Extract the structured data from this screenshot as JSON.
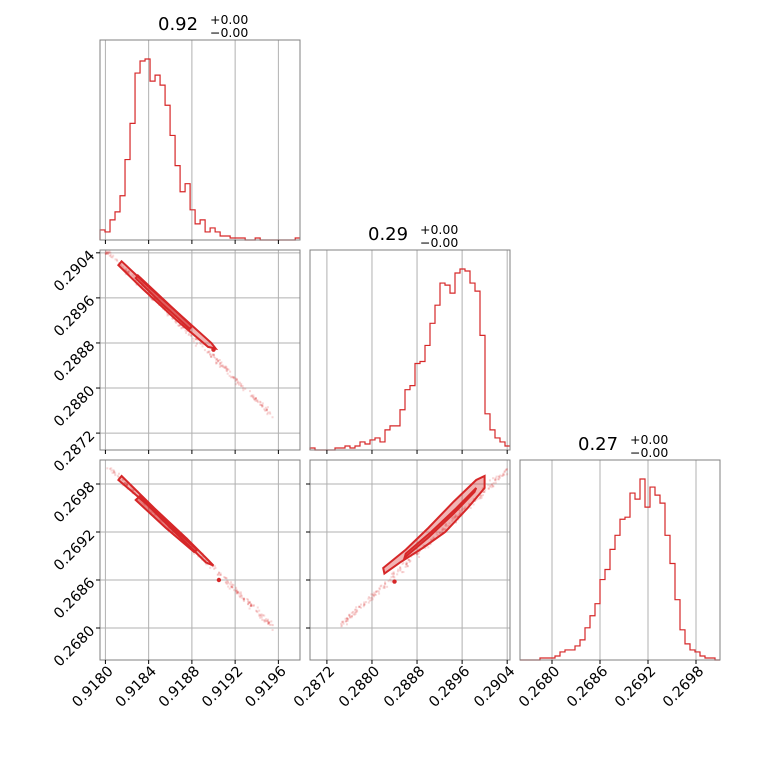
{
  "chart_data": {
    "type": "corner",
    "color": "#d62728",
    "frame_color": "#808080",
    "grid_color": "#b0b0b0",
    "grid": true,
    "parameters": [
      {
        "title_value": "0.92",
        "title_sup": "+0.00",
        "title_sub": "−0.00",
        "range": [
          0.91795,
          0.9198
        ],
        "ticks": [
          0.918,
          0.9184,
          0.9188,
          0.9192,
          0.9196
        ],
        "tick_labels": [
          "0.9180",
          "0.9184",
          "0.9188",
          "0.9192",
          "0.9196"
        ],
        "hist": {
          "edges_start": 0.91795,
          "bin_width": 4.63e-05,
          "counts": [
            5,
            4,
            10,
            14,
            22,
            40,
            58,
            83,
            89,
            90,
            79,
            82,
            77,
            67,
            52,
            37,
            24,
            28,
            15,
            8,
            10,
            4,
            6,
            4,
            2,
            2,
            1,
            1,
            1,
            0,
            0,
            1,
            0,
            0,
            0,
            0,
            0,
            0,
            0,
            1
          ]
        }
      },
      {
        "title_value": "0.29",
        "title_sup": "+0.00",
        "title_sub": "−0.00",
        "range": [
          0.2869,
          0.29045
        ],
        "ticks": [
          0.2872,
          0.288,
          0.2888,
          0.2896,
          0.2904
        ],
        "tick_labels": [
          "0.2872",
          "0.2880",
          "0.2888",
          "0.2896",
          "0.2904"
        ],
        "hist": {
          "edges_start": 0.2869,
          "bin_width": 8.875e-05,
          "counts": [
            1,
            0,
            0,
            0,
            0,
            1,
            1,
            2,
            1,
            2,
            4,
            3,
            5,
            6,
            4,
            10,
            12,
            12,
            20,
            30,
            32,
            43,
            44,
            52,
            63,
            72,
            83,
            82,
            78,
            88,
            90,
            89,
            83,
            79,
            57,
            18,
            10,
            6,
            4,
            2
          ]
        }
      },
      {
        "title_value": "0.27",
        "title_sup": "+0.00",
        "title_sub": "−0.00",
        "range": [
          0.2676,
          0.2701
        ],
        "ticks": [
          0.268,
          0.2686,
          0.2692,
          0.2698
        ],
        "tick_labels": [
          "0.2680",
          "0.2686",
          "0.2692",
          "0.2698"
        ],
        "hist": {
          "edges_start": 0.2676,
          "bin_width": 6.25e-05,
          "counts": [
            0,
            0,
            0,
            0,
            1,
            1,
            1,
            2,
            4,
            5,
            5,
            7,
            10,
            16,
            22,
            28,
            40,
            45,
            55,
            62,
            70,
            71,
            83,
            80,
            90,
            76,
            86,
            82,
            78,
            62,
            48,
            30,
            15,
            8,
            5,
            4,
            2,
            1,
            1,
            0
          ]
        }
      }
    ],
    "pairs": [
      {
        "row": 1,
        "col": 0,
        "scatter_line": {
          "x0": 0.918,
          "y0": 0.29045,
          "x1": 0.9196,
          "y1": 0.2874,
          "jitter_y": 8e-05
        },
        "scatter_start": 0.918,
        "scatter_end": 0.91955,
        "contour_path": [
          [
            0.91815,
            0.29025
          ],
          [
            0.9184,
            0.2898
          ],
          [
            0.91872,
            0.28925
          ],
          [
            0.91898,
            0.2888
          ],
          [
            0.91902,
            0.2887
          ],
          [
            0.91895,
            0.28873
          ],
          [
            0.91866,
            0.2892
          ],
          [
            0.91835,
            0.28975
          ],
          [
            0.91812,
            0.29018
          ]
        ],
        "inner_path": [
          [
            0.9183,
            0.29
          ],
          [
            0.91855,
            0.28955
          ],
          [
            0.9188,
            0.2891
          ],
          [
            0.91878,
            0.28905
          ],
          [
            0.91852,
            0.2895
          ],
          [
            0.91828,
            0.28995
          ]
        ],
        "dense_points": [
          [
            0.919,
            0.28868
          ]
        ]
      },
      {
        "row": 2,
        "col": 0,
        "scatter_line": {
          "x0": 0.918,
          "y0": 0.27005,
          "x1": 0.9196,
          "y1": 0.26795,
          "jitter_y": 6e-05
        },
        "scatter_start": 0.918,
        "scatter_end": 0.91955,
        "contour_path": [
          [
            0.91815,
            0.2699
          ],
          [
            0.91845,
            0.2695
          ],
          [
            0.91875,
            0.26912
          ],
          [
            0.91895,
            0.26885
          ],
          [
            0.919,
            0.26878
          ],
          [
            0.91893,
            0.26882
          ],
          [
            0.91868,
            0.26915
          ],
          [
            0.91838,
            0.26955
          ],
          [
            0.91812,
            0.26985
          ]
        ],
        "inner_path": [
          [
            0.91832,
            0.26965
          ],
          [
            0.9186,
            0.26928
          ],
          [
            0.91885,
            0.26898
          ],
          [
            0.91882,
            0.26895
          ],
          [
            0.91856,
            0.26925
          ],
          [
            0.91828,
            0.2696
          ]
        ],
        "dense_points": [
          [
            0.91905,
            0.2686
          ]
        ]
      },
      {
        "row": 2,
        "col": 1,
        "scatter_line": {
          "x0": 0.2874,
          "y0": 0.268,
          "x1": 0.2904,
          "y1": 0.26998,
          "jitter_y": 6e-05
        },
        "scatter_start": 0.28745,
        "scatter_end": 0.2904,
        "contour_path": [
          [
            0.2882,
            0.26875
          ],
          [
            0.2886,
            0.26898
          ],
          [
            0.289,
            0.26925
          ],
          [
            0.28945,
            0.26958
          ],
          [
            0.28985,
            0.26985
          ],
          [
            0.29,
            0.2699
          ],
          [
            0.29,
            0.26975
          ],
          [
            0.2897,
            0.2695
          ],
          [
            0.2893,
            0.2692
          ],
          [
            0.2889,
            0.269
          ],
          [
            0.2885,
            0.26882
          ],
          [
            0.28822,
            0.26868
          ]
        ],
        "inner_path": [
          [
            0.2886,
            0.26893
          ],
          [
            0.28905,
            0.2692
          ],
          [
            0.2895,
            0.2695
          ],
          [
            0.28985,
            0.26975
          ],
          [
            0.28982,
            0.2697
          ],
          [
            0.28945,
            0.26943
          ],
          [
            0.289,
            0.26913
          ],
          [
            0.28858,
            0.26888
          ]
        ],
        "dense_points": [
          [
            0.2884,
            0.26858
          ]
        ]
      }
    ]
  }
}
